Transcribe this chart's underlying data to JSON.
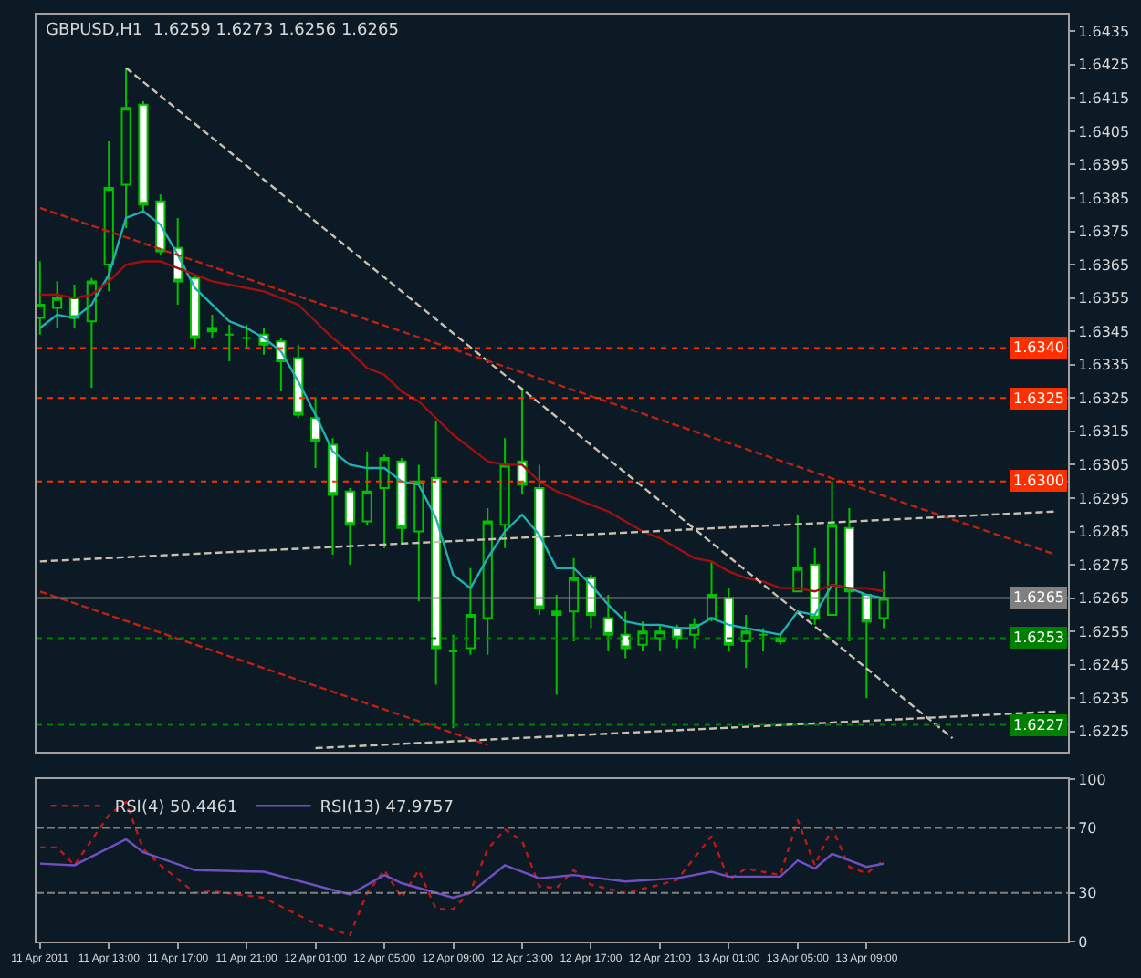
{
  "chart_data": [
    {
      "type": "candlestick",
      "title": "GBPUSD,H1  1.6259 1.6273 1.6256 1.6265",
      "x": [
        "2011-04-11T09:00",
        "2011-04-11T10:00",
        "2011-04-11T11:00",
        "2011-04-11T12:00",
        "2011-04-11T13:00",
        "2011-04-11T14:00",
        "2011-04-11T15:00",
        "2011-04-11T16:00",
        "2011-04-11T17:00",
        "2011-04-11T18:00",
        "2011-04-11T19:00",
        "2011-04-11T20:00",
        "2011-04-11T21:00",
        "2011-04-11T22:00",
        "2011-04-11T23:00",
        "2011-04-12T00:00",
        "2011-04-12T01:00",
        "2011-04-12T02:00",
        "2011-04-12T03:00",
        "2011-04-12T04:00",
        "2011-04-12T05:00",
        "2011-04-12T06:00",
        "2011-04-12T07:00",
        "2011-04-12T08:00",
        "2011-04-12T09:00",
        "2011-04-12T10:00",
        "2011-04-12T11:00",
        "2011-04-12T12:00",
        "2011-04-12T13:00",
        "2011-04-12T14:00",
        "2011-04-12T15:00",
        "2011-04-12T16:00",
        "2011-04-12T17:00",
        "2011-04-12T18:00",
        "2011-04-12T19:00",
        "2011-04-12T20:00",
        "2011-04-12T21:00",
        "2011-04-12T22:00",
        "2011-04-12T23:00",
        "2011-04-13T00:00",
        "2011-04-13T01:00",
        "2011-04-13T02:00",
        "2011-04-13T03:00",
        "2011-04-13T04:00",
        "2011-04-13T05:00",
        "2011-04-13T06:00",
        "2011-04-13T07:00",
        "2011-04-13T08:00",
        "2011-04-13T09:00",
        "2011-04-13T10:00"
      ],
      "ohlc": [
        [
          1.6349,
          1.6366,
          1.6344,
          1.6353
        ],
        [
          1.6352,
          1.636,
          1.6346,
          1.6355
        ],
        [
          1.6355,
          1.6359,
          1.6346,
          1.6349
        ],
        [
          1.6348,
          1.6361,
          1.6328,
          1.636
        ],
        [
          1.6365,
          1.6402,
          1.6357,
          1.6388
        ],
        [
          1.6389,
          1.6424,
          1.6376,
          1.6412
        ],
        [
          1.6413,
          1.6414,
          1.6381,
          1.6383
        ],
        [
          1.6384,
          1.6386,
          1.6368,
          1.6369
        ],
        [
          1.637,
          1.6379,
          1.6353,
          1.636
        ],
        [
          1.6361,
          1.6362,
          1.634,
          1.6343
        ],
        [
          1.6346,
          1.635,
          1.6343,
          1.6345
        ],
        [
          1.6344,
          1.6347,
          1.6336,
          1.6344
        ],
        [
          1.6343,
          1.6347,
          1.634,
          1.6343
        ],
        [
          1.6344,
          1.6346,
          1.6338,
          1.6341
        ],
        [
          1.6342,
          1.6343,
          1.6327,
          1.6336
        ],
        [
          1.6337,
          1.6341,
          1.6319,
          1.632
        ],
        [
          1.6319,
          1.6325,
          1.6304,
          1.6312
        ],
        [
          1.6311,
          1.6313,
          1.6278,
          1.6296
        ],
        [
          1.6297,
          1.6298,
          1.6275,
          1.6287
        ],
        [
          1.6288,
          1.6309,
          1.6287,
          1.6297
        ],
        [
          1.6298,
          1.6308,
          1.628,
          1.6307
        ],
        [
          1.6306,
          1.6307,
          1.6281,
          1.6286
        ],
        [
          1.6285,
          1.6305,
          1.6264,
          1.63
        ],
        [
          1.6301,
          1.6318,
          1.6239,
          1.625
        ],
        [
          1.6249,
          1.6254,
          1.6226,
          1.6249
        ],
        [
          1.625,
          1.6274,
          1.6248,
          1.626
        ],
        [
          1.6259,
          1.6292,
          1.6248,
          1.6288
        ],
        [
          1.6287,
          1.6313,
          1.628,
          1.6305
        ],
        [
          1.6306,
          1.6328,
          1.6296,
          1.6299
        ],
        [
          1.6298,
          1.6305,
          1.626,
          1.6262
        ],
        [
          1.6261,
          1.6266,
          1.6236,
          1.626
        ],
        [
          1.6261,
          1.6277,
          1.6252,
          1.6271
        ],
        [
          1.6271,
          1.6272,
          1.6256,
          1.626
        ],
        [
          1.6259,
          1.6266,
          1.6249,
          1.6254
        ],
        [
          1.6254,
          1.6261,
          1.6247,
          1.625
        ],
        [
          1.6251,
          1.6258,
          1.6249,
          1.6255
        ],
        [
          1.6253,
          1.6257,
          1.6249,
          1.6255
        ],
        [
          1.6256,
          1.6257,
          1.625,
          1.6253
        ],
        [
          1.6254,
          1.6259,
          1.625,
          1.6257
        ],
        [
          1.6259,
          1.6276,
          1.6258,
          1.6266
        ],
        [
          1.6265,
          1.6268,
          1.6249,
          1.6251
        ],
        [
          1.6252,
          1.626,
          1.6244,
          1.6255
        ],
        [
          1.6254,
          1.6256,
          1.6249,
          1.6254
        ],
        [
          1.6253,
          1.6254,
          1.6251,
          1.6252
        ],
        [
          1.6267,
          1.629,
          1.6267,
          1.6274
        ],
        [
          1.6275,
          1.628,
          1.6257,
          1.6259
        ],
        [
          1.626,
          1.63,
          1.626,
          1.6287
        ],
        [
          1.6286,
          1.6292,
          1.6252,
          1.6267
        ],
        [
          1.6266,
          1.6266,
          1.6235,
          1.6258
        ],
        [
          1.6259,
          1.6273,
          1.6256,
          1.6265
        ]
      ],
      "series": [
        {
          "type": "line",
          "color": "#20b0b0",
          "line_style": "solid",
          "values": [
            1.6346,
            1.635,
            1.6349,
            1.6353,
            1.6362,
            1.6379,
            1.6381,
            1.6377,
            1.6368,
            1.6358,
            1.6353,
            1.6348,
            1.6346,
            1.6343,
            1.6339,
            1.633,
            1.632,
            1.6309,
            1.6305,
            1.6304,
            1.6304,
            1.63,
            1.6299,
            1.6289,
            1.6272,
            1.6268,
            1.6277,
            1.6285,
            1.629,
            1.6284,
            1.6274,
            1.6274,
            1.6269,
            1.6263,
            1.6258,
            1.6257,
            1.6257,
            1.6256,
            1.6256,
            1.6259,
            1.6257,
            1.6256,
            1.6255,
            1.6254,
            1.6261,
            1.626,
            1.6269,
            1.6268,
            1.6266,
            1.6265
          ]
        },
        {
          "type": "line",
          "color": "#a01010",
          "line_style": "solid",
          "values": [
            1.6356,
            1.6356,
            1.6355,
            1.6356,
            1.636,
            1.6365,
            1.6366,
            1.6366,
            1.6364,
            1.6362,
            1.636,
            1.6359,
            1.6358,
            1.6357,
            1.6355,
            1.6353,
            1.6348,
            1.6343,
            1.6339,
            1.6334,
            1.6332,
            1.6327,
            1.6324,
            1.6319,
            1.6314,
            1.631,
            1.6306,
            1.6305,
            1.6305,
            1.63,
            1.6297,
            1.6295,
            1.6293,
            1.6291,
            1.6288,
            1.6285,
            1.6283,
            1.628,
            1.6277,
            1.6276,
            1.6273,
            1.6271,
            1.627,
            1.6268,
            1.6268,
            1.6267,
            1.6269,
            1.6268,
            1.6268,
            1.6267
          ]
        },
        {
          "type": "line",
          "color": "#c8c0b0",
          "line_style": "dashed",
          "x": [
            "2011-04-11T14:00",
            "2011-04-13T14:00"
          ],
          "values": [
            1.6424,
            1.6223
          ]
        },
        {
          "type": "line",
          "color": "#c02010",
          "line_style": "dashed",
          "x": [
            "2011-04-11T09:00",
            "2011-04-13T20:00"
          ],
          "values": [
            1.6382,
            1.6278
          ]
        },
        {
          "type": "line",
          "color": "#c8c0b0",
          "line_style": "dashed",
          "x": [
            "2011-04-11T09:00",
            "2011-04-13T20:00"
          ],
          "values": [
            1.6276,
            1.6291
          ]
        },
        {
          "type": "line",
          "color": "#c02010",
          "line_style": "dashed",
          "x": [
            "2011-04-11T09:00",
            "2011-04-12T11:00"
          ],
          "values": [
            1.6267,
            1.6221
          ]
        },
        {
          "type": "line",
          "color": "#c8c0b0",
          "line_style": "dashed",
          "x": [
            "2011-04-12T01:00",
            "2011-04-13T20:00"
          ],
          "values": [
            1.622,
            1.6231
          ]
        }
      ],
      "ref_lines": [
        {
          "axis": "y",
          "value": 1.634,
          "label": "1.6340",
          "color": "#ff3000",
          "line_style": "dotted"
        },
        {
          "axis": "y",
          "value": 1.6325,
          "label": "1.6325",
          "color": "#ff3000",
          "line_style": "dotted"
        },
        {
          "axis": "y",
          "value": 1.63,
          "label": "1.6300",
          "color": "#ff3000",
          "line_style": "dotted"
        },
        {
          "axis": "y",
          "value": 1.6265,
          "label": "1.6265",
          "color": "#808080",
          "line_style": "solid"
        },
        {
          "axis": "y",
          "value": 1.6253,
          "label": "1.6253",
          "color": "#008000",
          "line_style": "dotted"
        },
        {
          "axis": "y",
          "value": 1.6227,
          "label": "1.6227",
          "color": "#008000",
          "line_style": "dotted"
        }
      ],
      "xlim": [
        "2011-04-11T08:48",
        "2011-04-13T20:42"
      ],
      "ylim": [
        1.6219,
        1.644
      ],
      "yticks": [
        1.6225,
        1.6235,
        1.6245,
        1.6255,
        1.6265,
        1.6275,
        1.6285,
        1.6295,
        1.6305,
        1.6315,
        1.6325,
        1.6335,
        1.6345,
        1.6355,
        1.6365,
        1.6375,
        1.6385,
        1.6395,
        1.6405,
        1.6415,
        1.6425,
        1.6435
      ],
      "tick_labels": "y",
      "grid": false,
      "legend": false
    },
    {
      "type": "line",
      "legend": "top left",
      "grid": false,
      "series": [
        {
          "name": "RSI(4) 50.4461",
          "color": "#c01818",
          "line_style": "dotted",
          "x": [
            "2011-04-11T09:00",
            "2011-04-11T10:00",
            "2011-04-11T11:00",
            "2011-04-11T13:00",
            "2011-04-11T14:00",
            "2011-04-11T15:00",
            "2011-04-11T16:00",
            "2011-04-11T18:00",
            "2011-04-11T19:00",
            "2011-04-11T22:00",
            "2011-04-12T01:00",
            "2011-04-12T03:00",
            "2011-04-12T04:00",
            "2011-04-12T05:00",
            "2011-04-12T06:00",
            "2011-04-12T07:00",
            "2011-04-12T08:00",
            "2011-04-12T09:00",
            "2011-04-12T10:00",
            "2011-04-12T11:00",
            "2011-04-12T12:00",
            "2011-04-12T13:00",
            "2011-04-12T14:00",
            "2011-04-12T15:00",
            "2011-04-12T16:00",
            "2011-04-12T17:00",
            "2011-04-12T19:00",
            "2011-04-12T21:00",
            "2011-04-12T22:00",
            "2011-04-13T00:00",
            "2011-04-13T01:00",
            "2011-04-13T02:00",
            "2011-04-13T04:00",
            "2011-04-13T05:00",
            "2011-04-13T06:00",
            "2011-04-13T07:00",
            "2011-04-13T08:00",
            "2011-04-13T09:00",
            "2011-04-13T10:00"
          ],
          "values": [
            58,
            58,
            47,
            78,
            86,
            57,
            47,
            30,
            31,
            27,
            11,
            4,
            30,
            44,
            27,
            44,
            20,
            20,
            31,
            57,
            69,
            62,
            34,
            33,
            44,
            35,
            30,
            35,
            38,
            65,
            38,
            45,
            41,
            75,
            47,
            70,
            46,
            42,
            50
          ]
        },
        {
          "name": "RSI(13) 47.9757",
          "color": "#7050c0",
          "line_style": "solid",
          "x": [
            "2011-04-11T09:00",
            "2011-04-11T11:00",
            "2011-04-11T14:00",
            "2011-04-11T15:00",
            "2011-04-11T18:00",
            "2011-04-11T22:00",
            "2011-04-12T03:00",
            "2011-04-12T05:00",
            "2011-04-12T06:00",
            "2011-04-12T09:00",
            "2011-04-12T10:00",
            "2011-04-12T12:00",
            "2011-04-12T14:00",
            "2011-04-12T16:00",
            "2011-04-12T19:00",
            "2011-04-12T22:00",
            "2011-04-13T00:00",
            "2011-04-13T01:00",
            "2011-04-13T04:00",
            "2011-04-13T05:00",
            "2011-04-13T06:00",
            "2011-04-13T07:00",
            "2011-04-13T09:00",
            "2011-04-13T10:00"
          ],
          "values": [
            48,
            47,
            63,
            55,
            44,
            43,
            29,
            41,
            36,
            27,
            30,
            47,
            39,
            41,
            37,
            39,
            43,
            40,
            40,
            50,
            45,
            54,
            46,
            48
          ]
        }
      ],
      "ref_lines": [
        {
          "axis": "y",
          "value": 70,
          "color": "#808080",
          "line_style": "dashed"
        },
        {
          "axis": "y",
          "value": 30,
          "color": "#808080",
          "line_style": "dashed"
        }
      ],
      "xlim": [
        "2011-04-11T08:48",
        "2011-04-13T20:42"
      ],
      "xticks": [
        {
          "value": "2011-04-11T09:00",
          "label": "11 Apr 2011"
        },
        {
          "value": "2011-04-11T13:00",
          "label": "11 Apr 13:00"
        },
        {
          "value": "2011-04-11T17:00",
          "label": "11 Apr 17:00"
        },
        {
          "value": "2011-04-11T21:00",
          "label": "11 Apr 21:00"
        },
        {
          "value": "2011-04-12T01:00",
          "label": "12 Apr 01:00"
        },
        {
          "value": "2011-04-12T05:00",
          "label": "12 Apr 05:00"
        },
        {
          "value": "2011-04-12T09:00",
          "label": "12 Apr 09:00"
        },
        {
          "value": "2011-04-12T13:00",
          "label": "12 Apr 13:00"
        },
        {
          "value": "2011-04-12T17:00",
          "label": "12 Apr 17:00"
        },
        {
          "value": "2011-04-12T21:00",
          "label": "12 Apr 21:00"
        },
        {
          "value": "2011-04-13T01:00",
          "label": "13 Apr 01:00"
        },
        {
          "value": "2011-04-13T05:00",
          "label": "13 Apr 05:00"
        },
        {
          "value": "2011-04-13T09:00",
          "label": "13 Apr 09:00"
        }
      ],
      "ylim": [
        0,
        100
      ],
      "yticks": [
        0,
        30,
        70,
        100
      ]
    }
  ]
}
